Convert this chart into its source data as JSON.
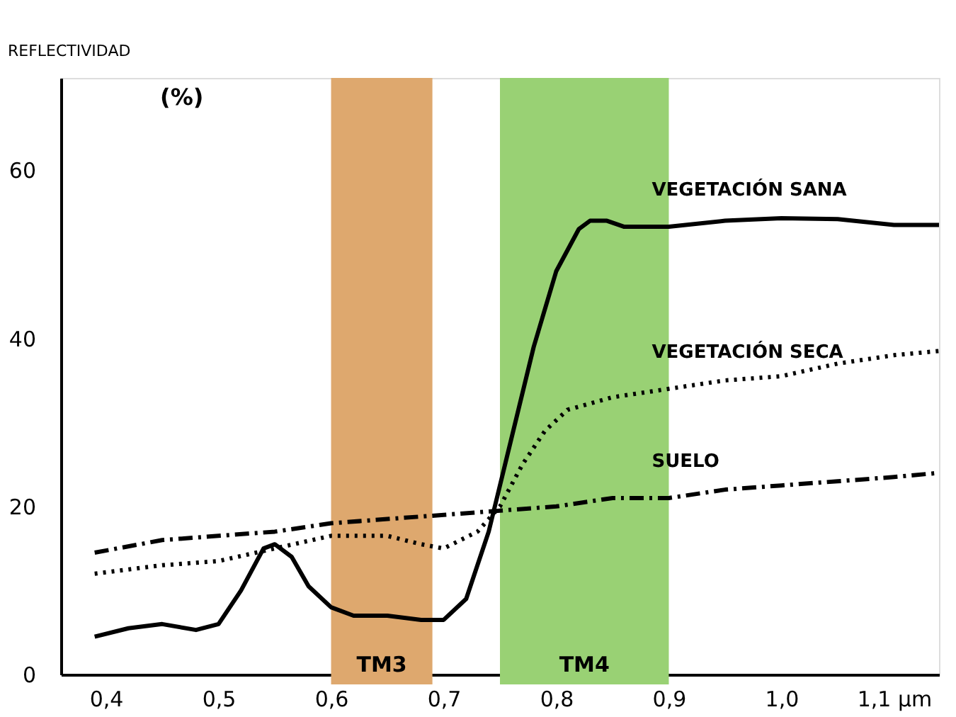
{
  "chart_data": {
    "type": "line",
    "ylabel": "REFLECTIVIDAD",
    "annotations": [
      "(%)"
    ],
    "xlim": [
      0.36,
      1.14
    ],
    "ylim": [
      0,
      71
    ],
    "yticks": [
      0,
      20,
      40,
      60
    ],
    "xticks": [
      {
        "value": 0.4,
        "label": "0,4"
      },
      {
        "value": 0.5,
        "label": "0,5"
      },
      {
        "value": 0.6,
        "label": "0,6"
      },
      {
        "value": 0.7,
        "label": "0,7"
      },
      {
        "value": 0.8,
        "label": "0,8"
      },
      {
        "value": 0.9,
        "label": "0,9"
      },
      {
        "value": 1.0,
        "label": "1,0"
      },
      {
        "value": 1.1,
        "label": "1,1 µm"
      }
    ],
    "grid": false,
    "bands": [
      {
        "axis": "x",
        "from": 0.6,
        "to": 0.69,
        "label": "TM3",
        "color": "#dea86e"
      },
      {
        "axis": "x",
        "from": 0.75,
        "to": 0.9,
        "label": "TM4",
        "color": "#99d174"
      }
    ],
    "series": [
      {
        "name": "VEGETACIÓN SANA",
        "color": "#000000",
        "line_style": "solid",
        "x": [
          0.39,
          0.42,
          0.45,
          0.48,
          0.5,
          0.52,
          0.54,
          0.55,
          0.565,
          0.58,
          0.6,
          0.62,
          0.65,
          0.68,
          0.7,
          0.72,
          0.74,
          0.76,
          0.78,
          0.8,
          0.82,
          0.83,
          0.845,
          0.86,
          0.9,
          0.95,
          1.0,
          1.05,
          1.1,
          1.14
        ],
        "values": [
          4.5,
          5.5,
          6,
          5.3,
          6,
          10,
          15,
          15.5,
          14,
          10.5,
          8,
          7,
          7,
          6.5,
          6.5,
          9,
          17,
          28,
          39,
          48,
          53,
          54,
          54,
          53.3,
          53.3,
          54,
          54.3,
          54.2,
          53.5,
          53.5
        ]
      },
      {
        "name": "VEGETACIÓN SECA",
        "color": "#000000",
        "line_style": "dotted",
        "x": [
          0.39,
          0.45,
          0.5,
          0.55,
          0.6,
          0.65,
          0.68,
          0.7,
          0.73,
          0.75,
          0.77,
          0.79,
          0.81,
          0.85,
          0.9,
          0.95,
          1.0,
          1.05,
          1.1,
          1.14
        ],
        "values": [
          12,
          13,
          13.5,
          15,
          16.5,
          16.5,
          15.5,
          15,
          17,
          20,
          25,
          29,
          31.5,
          33,
          34,
          35,
          35.5,
          37,
          38,
          38.5
        ]
      },
      {
        "name": "SUELO",
        "color": "#000000",
        "line_style": "dashed",
        "x": [
          0.39,
          0.45,
          0.5,
          0.55,
          0.6,
          0.65,
          0.7,
          0.75,
          0.8,
          0.85,
          0.9,
          0.95,
          1.0,
          1.05,
          1.1,
          1.14
        ],
        "values": [
          14.5,
          16,
          16.5,
          17,
          18,
          18.5,
          19,
          19.5,
          20,
          21,
          21,
          22,
          22.5,
          23,
          23.5,
          24
        ]
      }
    ]
  }
}
